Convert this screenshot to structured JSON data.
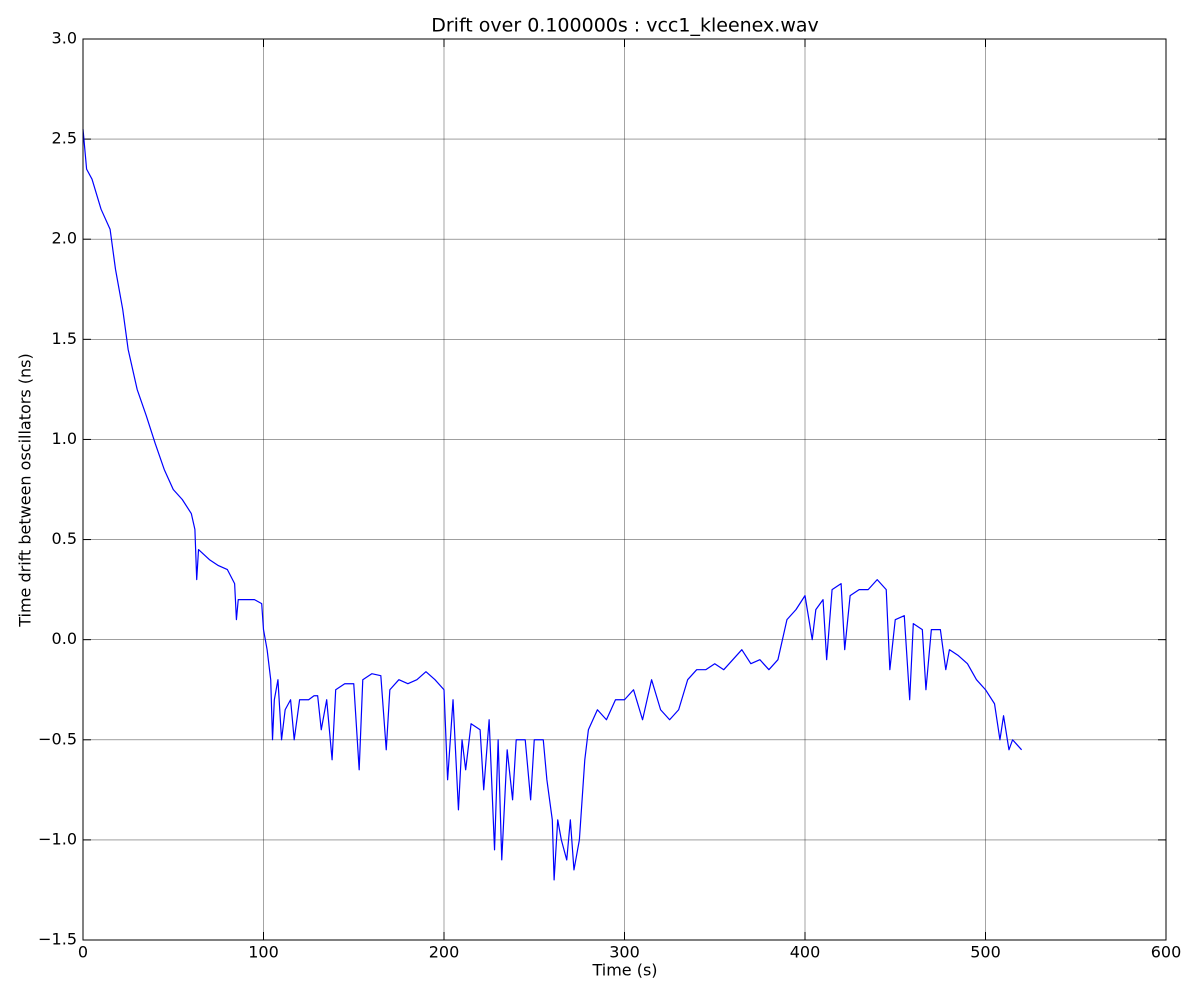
{
  "chart_data": {
    "type": "line",
    "title": "Drift over 0.100000s : vcc1_kleenex.wav",
    "xlabel": "Time (s)",
    "ylabel": "Time drift between oscillators (ns)",
    "color": "#0000ff",
    "grid": true,
    "xlim": [
      0,
      600
    ],
    "xticks": [
      0,
      100,
      200,
      300,
      400,
      500,
      600
    ],
    "ylim": [
      -1.5,
      3.0
    ],
    "yticks": [
      {
        "value": -1.5,
        "label": "−1.5"
      },
      {
        "value": -1.0,
        "label": "−1.0"
      },
      {
        "value": -0.5,
        "label": "−0.5"
      },
      {
        "value": 0,
        "label": "0.0"
      },
      {
        "value": 0.5,
        "label": "0.5"
      },
      {
        "value": 1.0,
        "label": "1.0"
      },
      {
        "value": 1.5,
        "label": "1.5"
      },
      {
        "value": 2.0,
        "label": "2.0"
      },
      {
        "value": 2.5,
        "label": "2.5"
      },
      {
        "value": 3.0,
        "label": "3.0"
      }
    ],
    "x": [
      0,
      2,
      5,
      10,
      15,
      18,
      22,
      25,
      30,
      35,
      40,
      45,
      50,
      55,
      60,
      62,
      63,
      64,
      70,
      75,
      80,
      84,
      85,
      86,
      90,
      95,
      99,
      100,
      102,
      104,
      105,
      106,
      108,
      110,
      112,
      115,
      117,
      120,
      125,
      128,
      130,
      132,
      135,
      138,
      140,
      145,
      150,
      153,
      155,
      160,
      165,
      168,
      170,
      175,
      180,
      185,
      190,
      195,
      200,
      202,
      205,
      208,
      210,
      212,
      215,
      220,
      222,
      225,
      228,
      230,
      232,
      235,
      238,
      240,
      245,
      248,
      250,
      255,
      257,
      260,
      261,
      263,
      265,
      268,
      270,
      272,
      275,
      278,
      280,
      285,
      290,
      295,
      300,
      305,
      310,
      315,
      320,
      325,
      330,
      335,
      340,
      345,
      350,
      355,
      360,
      365,
      370,
      375,
      380,
      385,
      390,
      395,
      400,
      404,
      406,
      410,
      412,
      415,
      420,
      422,
      425,
      430,
      435,
      440,
      445,
      447,
      450,
      455,
      458,
      460,
      465,
      467,
      470,
      475,
      478,
      480,
      485,
      490,
      495,
      500,
      505,
      508,
      510,
      513,
      515,
      520
    ],
    "values": [
      2.55,
      2.35,
      2.3,
      2.15,
      2.05,
      1.85,
      1.65,
      1.45,
      1.25,
      1.12,
      0.98,
      0.85,
      0.75,
      0.7,
      0.63,
      0.55,
      0.3,
      0.45,
      0.4,
      0.37,
      0.35,
      0.28,
      0.1,
      0.2,
      0.2,
      0.2,
      0.18,
      0.05,
      -0.05,
      -0.2,
      -0.5,
      -0.3,
      -0.2,
      -0.5,
      -0.35,
      -0.3,
      -0.5,
      -0.3,
      -0.3,
      -0.28,
      -0.28,
      -0.45,
      -0.3,
      -0.6,
      -0.25,
      -0.22,
      -0.22,
      -0.65,
      -0.2,
      -0.17,
      -0.18,
      -0.55,
      -0.25,
      -0.2,
      -0.22,
      -0.2,
      -0.16,
      -0.2,
      -0.25,
      -0.7,
      -0.3,
      -0.85,
      -0.5,
      -0.65,
      -0.42,
      -0.45,
      -0.75,
      -0.4,
      -1.05,
      -0.5,
      -1.1,
      -0.55,
      -0.8,
      -0.5,
      -0.5,
      -0.8,
      -0.5,
      -0.5,
      -0.7,
      -0.9,
      -1.2,
      -0.9,
      -1.0,
      -1.1,
      -0.9,
      -1.15,
      -1.0,
      -0.6,
      -0.45,
      -0.35,
      -0.4,
      -0.3,
      -0.3,
      -0.25,
      -0.4,
      -0.2,
      -0.35,
      -0.4,
      -0.35,
      -0.2,
      -0.15,
      -0.15,
      -0.12,
      -0.15,
      -0.1,
      -0.05,
      -0.12,
      -0.1,
      -0.15,
      -0.1,
      0.1,
      0.15,
      0.22,
      0.0,
      0.15,
      0.2,
      -0.1,
      0.25,
      0.28,
      -0.05,
      0.22,
      0.25,
      0.25,
      0.3,
      0.25,
      -0.15,
      0.1,
      0.12,
      -0.3,
      0.08,
      0.05,
      -0.25,
      0.05,
      0.05,
      -0.15,
      -0.05,
      -0.08,
      -0.12,
      -0.2,
      -0.25,
      -0.32,
      -0.5,
      -0.38,
      -0.55,
      -0.5,
      -0.55
    ]
  }
}
